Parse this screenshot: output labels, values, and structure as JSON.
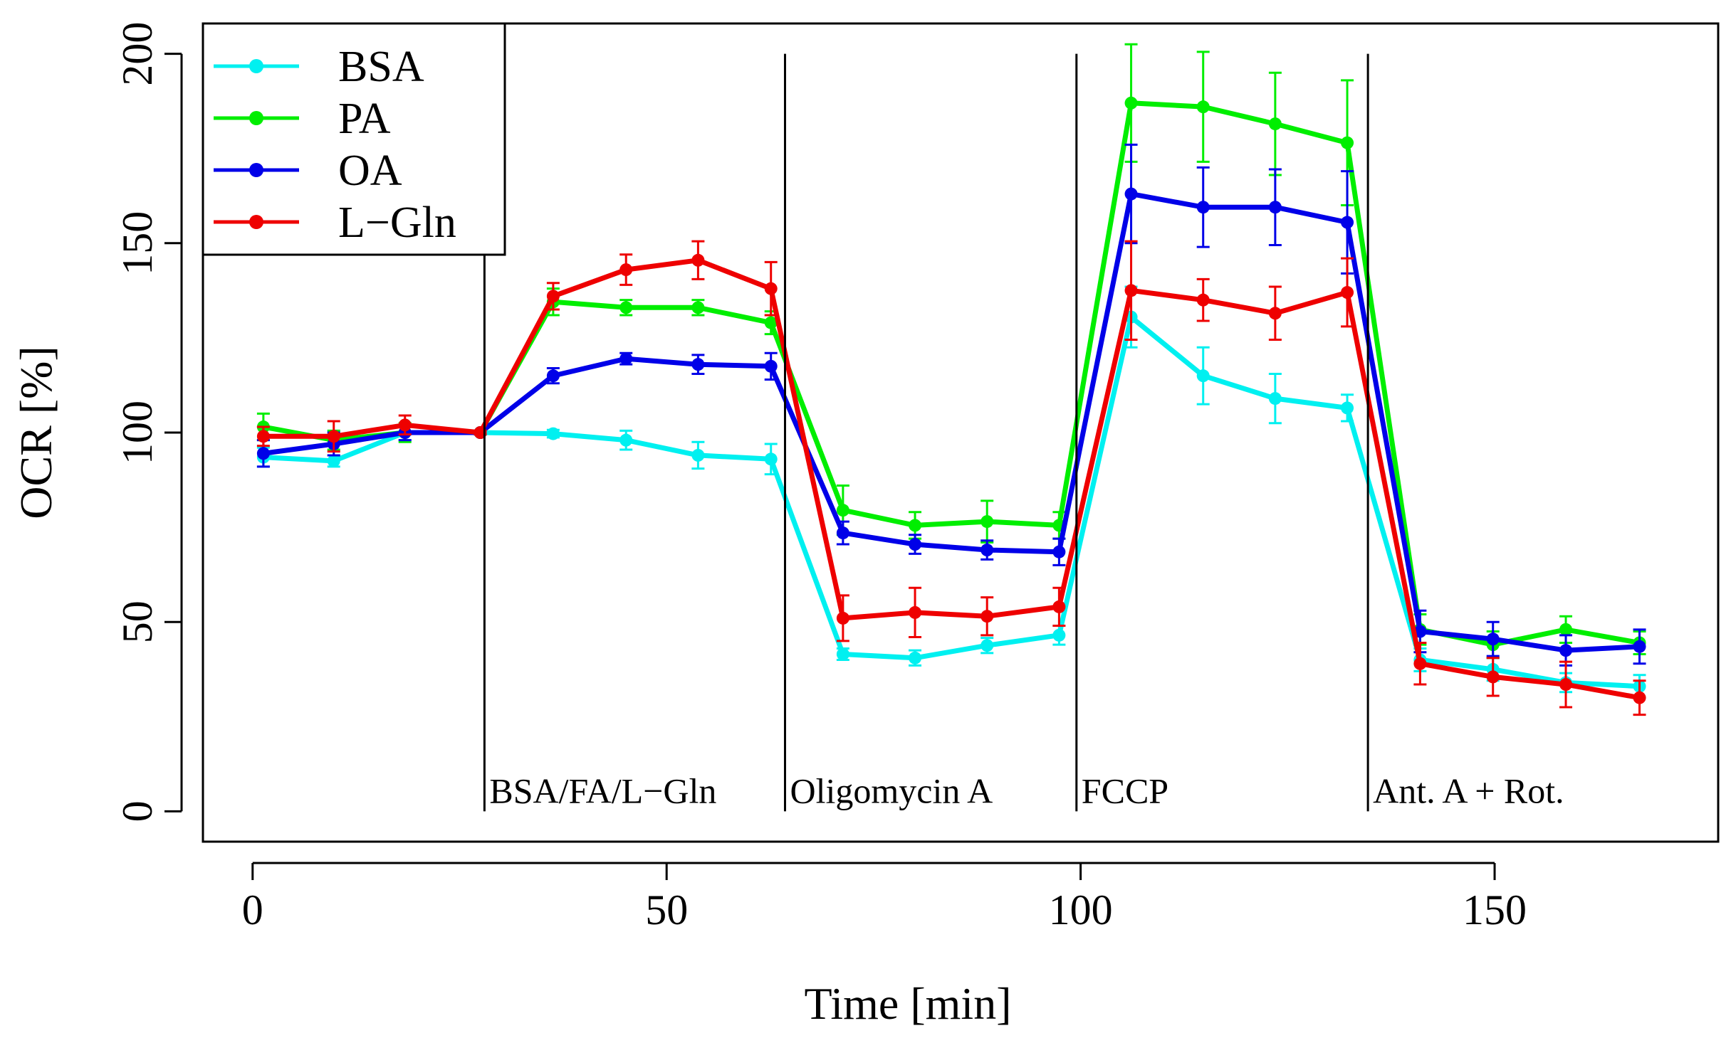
{
  "chart_data": {
    "type": "line",
    "title": "",
    "xlabel": "Time [min]",
    "ylabel": "OCR [%]",
    "xlim": [
      -6,
      177
    ],
    "ylim": [
      -8,
      208
    ],
    "x_ticks": [
      0,
      50,
      100,
      150
    ],
    "y_ticks": [
      0,
      50,
      100,
      150,
      200
    ],
    "grid": false,
    "legend_position": "top-left",
    "x": [
      1.3,
      9.8,
      18.4,
      27.5,
      36.3,
      45.1,
      53.8,
      62.6,
      71.3,
      80.0,
      88.7,
      97.4,
      106.1,
      114.8,
      123.5,
      132.2,
      141.0,
      149.8,
      158.6,
      167.5
    ],
    "series": [
      {
        "name": "BSA",
        "color": "#00f0f0",
        "values": [
          93.5,
          92.5,
          100.0,
          100.0,
          99.7,
          98.0,
          94.0,
          93.0,
          41.5,
          40.5,
          43.8,
          46.5,
          130.5,
          115.0,
          109.0,
          106.5,
          40.0,
          37.5,
          34.0,
          33.0
        ],
        "errors": [
          2.5,
          1.5,
          2.0,
          0.5,
          1.0,
          2.5,
          3.5,
          4.0,
          1.5,
          2.0,
          2.0,
          2.5,
          8.0,
          7.5,
          6.5,
          3.5,
          3.0,
          3.0,
          2.5,
          3.0
        ]
      },
      {
        "name": "PA",
        "color": "#00ee00",
        "values": [
          101.5,
          98.0,
          100.0,
          100.0,
          134.5,
          133.0,
          133.0,
          129.0,
          79.5,
          75.5,
          76.5,
          75.5,
          187.0,
          186.0,
          181.5,
          176.5,
          48.0,
          44.0,
          48.0,
          44.5
        ],
        "errors": [
          3.5,
          2.5,
          2.5,
          0.5,
          3.5,
          2.0,
          2.0,
          3.0,
          6.5,
          3.5,
          5.5,
          3.5,
          15.5,
          14.5,
          13.5,
          16.5,
          4.0,
          3.5,
          3.5,
          3.0
        ]
      },
      {
        "name": "OA",
        "color": "#0000e8",
        "values": [
          94.5,
          97.0,
          100.0,
          100.0,
          115.0,
          119.5,
          118.0,
          117.5,
          73.5,
          70.5,
          69.0,
          68.5,
          163.0,
          159.5,
          159.5,
          155.5,
          47.5,
          45.5,
          42.5,
          43.5
        ],
        "errors": [
          3.5,
          3.0,
          2.0,
          0.5,
          2.0,
          1.5,
          2.5,
          3.5,
          3.0,
          2.5,
          2.5,
          3.5,
          13.0,
          10.5,
          10.0,
          13.5,
          5.5,
          4.5,
          4.0,
          4.5
        ]
      },
      {
        "name": "L−Gln",
        "color": "#ee0000",
        "values": [
          99.0,
          99.0,
          102.0,
          100.0,
          136.0,
          143.0,
          145.5,
          138.0,
          51.0,
          52.5,
          51.5,
          54.0,
          137.5,
          135.0,
          131.5,
          137.0,
          39.0,
          35.5,
          33.5,
          30.0
        ],
        "errors": [
          2.5,
          4.0,
          2.5,
          0.5,
          3.5,
          4.0,
          5.0,
          7.0,
          6.0,
          6.5,
          5.0,
          5.0,
          13.0,
          5.5,
          7.0,
          9.0,
          5.5,
          5.0,
          6.0,
          4.5
        ]
      }
    ],
    "vlines": [
      {
        "x": 28.0,
        "label": "BSA/FA/L−Gln"
      },
      {
        "x": 64.3,
        "label": "Oligomycin A"
      },
      {
        "x": 99.5,
        "label": "FCCP"
      },
      {
        "x": 134.7,
        "label": "Ant. A + Rot."
      }
    ]
  }
}
